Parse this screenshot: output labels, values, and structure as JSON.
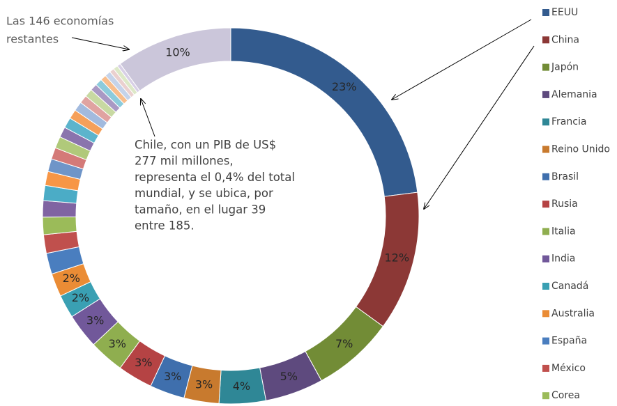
{
  "chart_data": {
    "type": "donut",
    "categories": [
      "EEUU",
      "China",
      "Japón",
      "Alemania",
      "Francia",
      "Reino Unido",
      "Brasil",
      "Rusia",
      "Italia",
      "India",
      "Canadá",
      "Australia",
      "España",
      "México",
      "Corea",
      null,
      null,
      null,
      null,
      null,
      null,
      null,
      null,
      null,
      null,
      null,
      null,
      null,
      null,
      null,
      null,
      null,
      null,
      null,
      null
    ],
    "values": [
      23,
      12,
      7,
      5,
      4,
      3,
      3,
      3,
      3,
      3,
      2,
      2,
      1.8,
      1.6,
      1.5,
      1.4,
      1.3,
      1.2,
      1.1,
      1.0,
      1.0,
      0.9,
      0.9,
      0.8,
      0.8,
      0.7,
      0.7,
      0.6,
      0.6,
      0.5,
      0.5,
      0.4,
      0.4,
      0.3,
      10
    ],
    "value_labels": [
      "23%",
      "12%",
      "7%",
      "5%",
      "4%",
      "3%",
      "3%",
      "3%",
      "3%",
      "3%",
      "2%",
      "2%",
      null,
      null,
      null,
      null,
      null,
      null,
      null,
      null,
      null,
      null,
      null,
      null,
      null,
      null,
      null,
      null,
      null,
      null,
      null,
      null,
      null,
      null,
      "10%"
    ],
    "colors": [
      "#335b8e",
      "#8c3836",
      "#728c36",
      "#5e4a7e",
      "#2f8796",
      "#c87a2e",
      "#3f6fad",
      "#b54344",
      "#8fae4f",
      "#71589a",
      "#3aa0b3",
      "#ea8c35",
      "#4a7ebf",
      "#c0504d",
      "#9bbb59",
      "#8064a2",
      "#4bacc6",
      "#f79646",
      "#6f95c8",
      "#d47a78",
      "#b0c97a",
      "#8a74ad",
      "#5cb4cc",
      "#f5a05a",
      "#a2bade",
      "#e0a3a1",
      "#c8d9a2",
      "#a999c4",
      "#8ccbdc",
      "#f8bd8c",
      "#c5d3ea",
      "#ead0cf",
      "#dde8c8",
      "#d8cfe6",
      "#cbc6da"
    ],
    "annotations": [
      {
        "lines": [
          "Las 146 economías",
          "restantes"
        ]
      },
      {
        "lines": [
          "Chile, con un PIB de US$",
          "277 mil millones,",
          "representa el 0,4% del total",
          "mundial, y se ubica, por",
          "tamaño, en el lugar 39",
          "entre 185."
        ]
      }
    ],
    "legend": "right"
  }
}
